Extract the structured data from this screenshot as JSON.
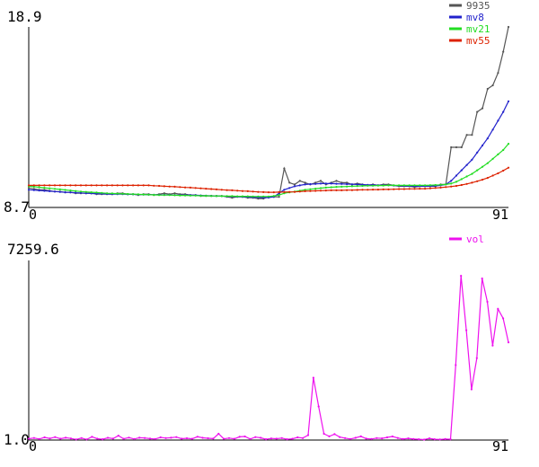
{
  "chart_data": [
    {
      "type": "line",
      "ylim": [
        8.7,
        18.9
      ],
      "y_tick_labels": [
        "18.9",
        "8.7"
      ],
      "x_tick_labels": [
        "0",
        "91"
      ],
      "grid": false,
      "legend_position": "top-right",
      "x": [
        0,
        1,
        2,
        3,
        4,
        5,
        6,
        7,
        8,
        9,
        10,
        11,
        12,
        13,
        14,
        15,
        16,
        17,
        18,
        19,
        20,
        21,
        22,
        23,
        24,
        25,
        26,
        27,
        28,
        29,
        30,
        31,
        32,
        33,
        34,
        35,
        36,
        37,
        38,
        39,
        40,
        41,
        42,
        43,
        44,
        45,
        46,
        47,
        48,
        49,
        50,
        51,
        52,
        53,
        54,
        55,
        56,
        57,
        58,
        59,
        60,
        61,
        62,
        63,
        64,
        65,
        66,
        67,
        67,
        68,
        69,
        70,
        71,
        72,
        73,
        74,
        75,
        76,
        77,
        78,
        79,
        80,
        81,
        82,
        83,
        84,
        85,
        86,
        87,
        88,
        89,
        90,
        91
      ],
      "series": [
        {
          "name": "9935",
          "color": "#555555",
          "values": [
            9.8,
            9.75,
            9.7,
            9.7,
            9.65,
            9.6,
            9.6,
            9.55,
            9.55,
            9.5,
            9.5,
            9.5,
            9.5,
            9.45,
            9.45,
            9.45,
            9.45,
            9.5,
            9.5,
            9.45,
            9.45,
            9.4,
            9.45,
            9.45,
            9.4,
            9.45,
            9.5,
            9.45,
            9.5,
            9.45,
            9.45,
            9.4,
            9.4,
            9.35,
            9.35,
            9.35,
            9.35,
            9.35,
            9.3,
            9.25,
            9.3,
            9.3,
            9.25,
            9.25,
            9.2,
            9.2,
            9.3,
            9.3,
            9.3,
            10.9,
            10.1,
            10.0,
            10.2,
            10.1,
            10.0,
            10.1,
            10.2,
            10.0,
            10.1,
            10.2,
            10.1,
            10.1,
            10.0,
            10.05,
            10.0,
            9.95,
            10.0,
            9.95,
            10.0,
            10.0,
            9.95,
            9.9,
            9.9,
            9.9,
            9.85,
            9.9,
            9.9,
            9.9,
            9.9,
            10.0,
            10.0,
            12.1,
            12.1,
            12.1,
            12.8,
            12.8,
            14.1,
            14.3,
            15.4,
            15.6,
            16.3,
            17.5,
            18.9
          ]
        },
        {
          "name": "mv8",
          "color": "#2222cc",
          "values": [
            9.7,
            9.68,
            9.66,
            9.64,
            9.62,
            9.6,
            9.58,
            9.56,
            9.55,
            9.53,
            9.52,
            9.5,
            9.49,
            9.48,
            9.47,
            9.46,
            9.45,
            9.45,
            9.45,
            9.44,
            9.44,
            9.43,
            9.43,
            9.42,
            9.42,
            9.41,
            9.41,
            9.41,
            9.4,
            9.4,
            9.4,
            9.4,
            9.39,
            9.38,
            9.37,
            9.36,
            9.35,
            9.34,
            9.33,
            9.32,
            9.31,
            9.3,
            9.29,
            9.28,
            9.27,
            9.26,
            9.26,
            9.3,
            9.5,
            9.7,
            9.8,
            9.9,
            9.95,
            10.0,
            10.02,
            10.03,
            10.05,
            10.05,
            10.05,
            10.04,
            10.03,
            10.02,
            10.01,
            10.0,
            9.99,
            9.98,
            9.97,
            9.96,
            9.96,
            9.95,
            9.94,
            9.93,
            9.92,
            9.91,
            9.9,
            9.9,
            9.9,
            9.91,
            9.92,
            9.95,
            10.0,
            10.2,
            10.5,
            10.8,
            11.1,
            11.4,
            11.8,
            12.2,
            12.6,
            13.1,
            13.6,
            14.1,
            14.7
          ]
        },
        {
          "name": "mv21",
          "color": "#22dd22",
          "values": [
            9.9,
            9.87,
            9.84,
            9.81,
            9.78,
            9.75,
            9.72,
            9.69,
            9.66,
            9.63,
            9.6,
            9.58,
            9.56,
            9.54,
            9.52,
            9.5,
            9.49,
            9.48,
            9.47,
            9.46,
            9.45,
            9.44,
            9.43,
            9.42,
            9.41,
            9.4,
            9.4,
            9.4,
            9.39,
            9.38,
            9.38,
            9.37,
            9.37,
            9.36,
            9.36,
            9.35,
            9.35,
            9.34,
            9.34,
            9.34,
            9.33,
            9.33,
            9.33,
            9.32,
            9.32,
            9.32,
            9.32,
            9.35,
            9.4,
            9.5,
            9.55,
            9.6,
            9.65,
            9.7,
            9.73,
            9.76,
            9.79,
            9.82,
            9.84,
            9.86,
            9.87,
            9.88,
            9.9,
            9.91,
            9.92,
            9.93,
            9.93,
            9.94,
            9.94,
            9.95,
            9.95,
            9.95,
            9.95,
            9.95,
            9.95,
            9.95,
            9.95,
            9.96,
            9.97,
            9.98,
            10.0,
            10.05,
            10.15,
            10.3,
            10.45,
            10.6,
            10.8,
            11.0,
            11.2,
            11.45,
            11.7,
            11.95,
            12.3
          ]
        },
        {
          "name": "mv55",
          "color": "#dd2200",
          "values": [
            9.95,
            9.95,
            9.95,
            9.95,
            9.95,
            9.95,
            9.95,
            9.95,
            9.95,
            9.95,
            9.95,
            9.95,
            9.95,
            9.95,
            9.95,
            9.95,
            9.95,
            9.95,
            9.95,
            9.95,
            9.95,
            9.95,
            9.95,
            9.95,
            9.93,
            9.92,
            9.9,
            9.88,
            9.87,
            9.85,
            9.83,
            9.82,
            9.8,
            9.78,
            9.76,
            9.74,
            9.72,
            9.7,
            9.68,
            9.67,
            9.65,
            9.63,
            9.62,
            9.6,
            9.58,
            9.57,
            9.56,
            9.56,
            9.57,
            9.57,
            9.58,
            9.58,
            9.6,
            9.62,
            9.63,
            9.64,
            9.65,
            9.66,
            9.67,
            9.67,
            9.67,
            9.68,
            9.68,
            9.69,
            9.7,
            9.7,
            9.71,
            9.71,
            9.72,
            9.72,
            9.73,
            9.74,
            9.74,
            9.75,
            9.75,
            9.76,
            9.76,
            9.78,
            9.8,
            9.82,
            9.85,
            9.88,
            9.92,
            9.97,
            10.03,
            10.1,
            10.18,
            10.27,
            10.37,
            10.5,
            10.63,
            10.78,
            10.95
          ]
        }
      ]
    },
    {
      "type": "line",
      "ylim": [
        1.0,
        7259.6
      ],
      "y_tick_labels": [
        "7259.6",
        "1.0"
      ],
      "x_tick_labels": [
        "0",
        "91"
      ],
      "grid": false,
      "legend_position": "top-right",
      "series": [
        {
          "name": "vol",
          "color": "#ee11ee",
          "values": [
            55,
            85,
            45,
            110,
            65,
            120,
            55,
            95,
            65,
            25,
            80,
            25,
            130,
            55,
            35,
            90,
            60,
            180,
            50,
            100,
            45,
            95,
            85,
            60,
            45,
            110,
            80,
            95,
            120,
            55,
            75,
            50,
            135,
            90,
            75,
            60,
            255,
            50,
            80,
            50,
            130,
            145,
            45,
            120,
            90,
            35,
            65,
            55,
            80,
            35,
            50,
            110,
            80,
            200,
            2520,
            1360,
            255,
            150,
            240,
            120,
            80,
            45,
            90,
            150,
            60,
            45,
            80,
            70,
            110,
            145,
            85,
            40,
            70,
            40,
            35,
            20,
            70,
            35,
            25,
            40,
            35,
            3030,
            6640,
            4440,
            2050,
            3310,
            6530,
            5590,
            3820,
            5300,
            4920,
            3950
          ]
        }
      ]
    }
  ]
}
